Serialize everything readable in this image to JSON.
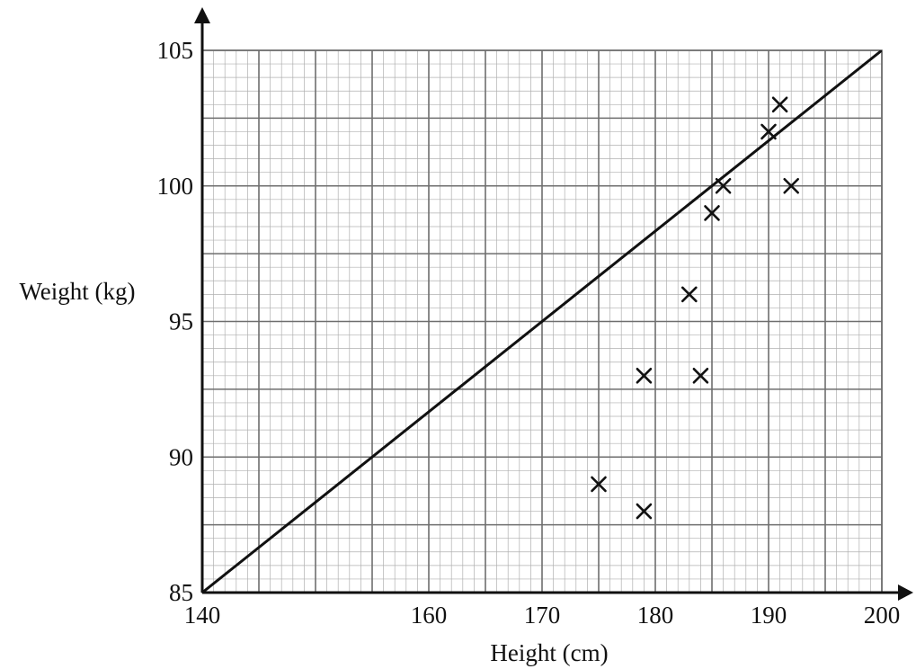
{
  "chart_data": {
    "type": "scatter",
    "xlabel": "Height (cm)",
    "ylabel": "Weight (kg)",
    "xlim": [
      140,
      200
    ],
    "ylim": [
      85,
      105
    ],
    "xticks": [
      "140",
      "160",
      "170",
      "180",
      "190",
      "200"
    ],
    "xtick_values": [
      140,
      160,
      170,
      180,
      190,
      200
    ],
    "yticks": [
      "85",
      "90",
      "95",
      "100",
      "105"
    ],
    "ytick_values": [
      85,
      90,
      95,
      100,
      105
    ],
    "grid": true,
    "grid_minor_step_x": 1,
    "grid_minor_step_y": 0.5,
    "grid_major_step_x": 5,
    "grid_major_step_y": 2.5,
    "marker": "x",
    "colors": {
      "ink": "#111111",
      "grid_minor": "#b0b0b0",
      "grid_major": "#6e6e6e",
      "line": "#111111"
    },
    "points": [
      {
        "x": 175,
        "y": 89
      },
      {
        "x": 179,
        "y": 88
      },
      {
        "x": 179,
        "y": 93
      },
      {
        "x": 183,
        "y": 96
      },
      {
        "x": 184,
        "y": 93
      },
      {
        "x": 185,
        "y": 99
      },
      {
        "x": 186,
        "y": 100
      },
      {
        "x": 190,
        "y": 102
      },
      {
        "x": 191,
        "y": 103
      },
      {
        "x": 192,
        "y": 100
      }
    ],
    "line_of_best_fit": {
      "x": [
        140,
        200
      ],
      "y": [
        85,
        105
      ]
    }
  }
}
